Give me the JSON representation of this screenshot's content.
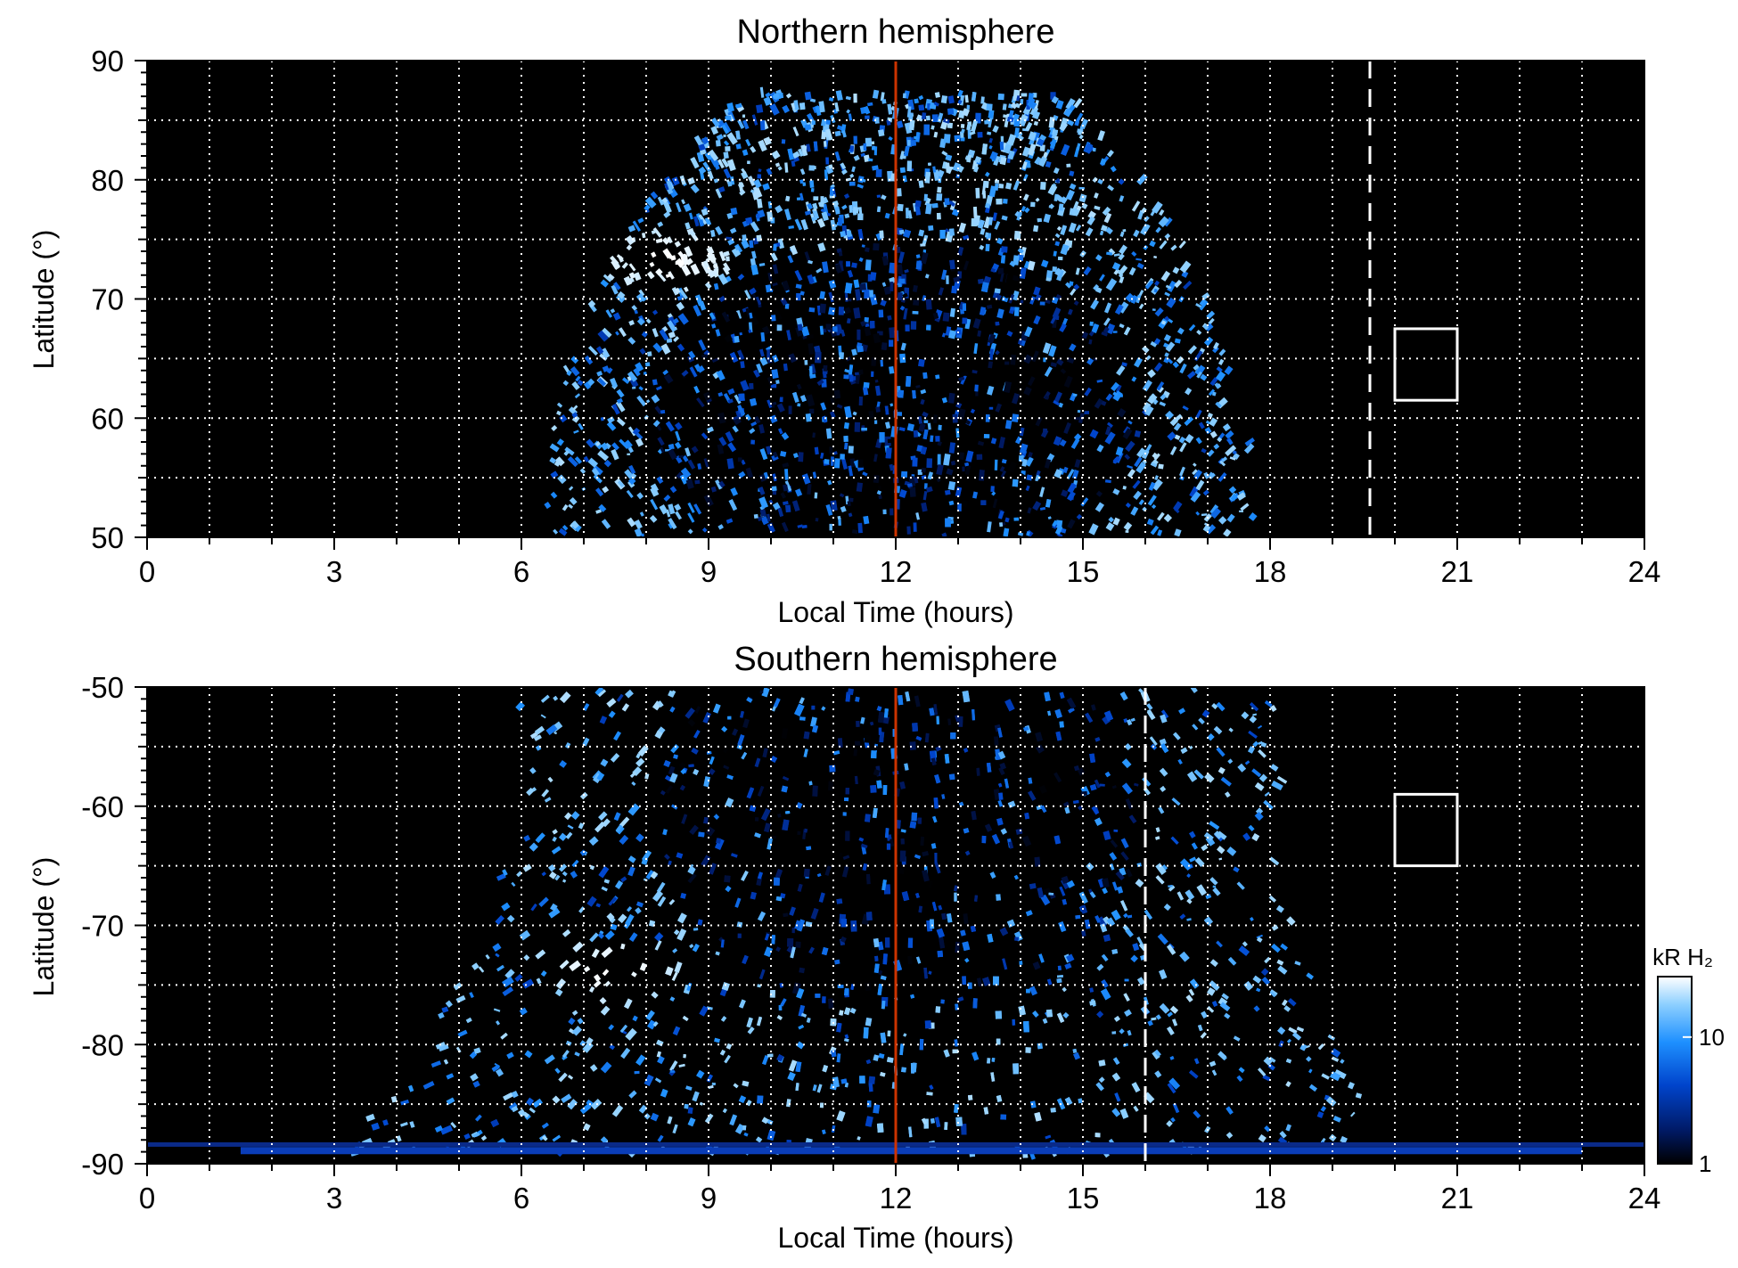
{
  "chart_data": [
    {
      "type": "heatmap",
      "title": "Northern hemisphere",
      "xlabel": "Local Time (hours)",
      "ylabel": "Latitude (°)",
      "xlim": [
        0,
        24
      ],
      "ylim": [
        50,
        90
      ],
      "x_ticks": [
        0,
        3,
        6,
        9,
        12,
        15,
        18,
        21,
        24
      ],
      "y_ticks": [
        50,
        60,
        70,
        80,
        90
      ],
      "grid": true,
      "noon_line_lt": 12,
      "noon_line_color": "#cc3300",
      "dashed_line_lt": 19.6,
      "box": {
        "lt": [
          20,
          21
        ],
        "lat": [
          61.5,
          67.5
        ]
      },
      "emission": {
        "lt_edge_at_50deg": [
          6.4,
          17.7
        ],
        "lt_edge_at_top": [
          9.6,
          14.8
        ],
        "lat_top": 87,
        "oval_center_lt": 12,
        "oval_center_lat": 60,
        "bright_spots": [
          {
            "lt": 8.4,
            "lat": 73,
            "level": 30
          },
          {
            "lt": 15.2,
            "lat": 77,
            "level": 14
          }
        ]
      }
    },
    {
      "type": "heatmap",
      "title": "Southern hemisphere",
      "xlabel": "Local Time (hours)",
      "ylabel": "Latitude (°)",
      "xlim": [
        0,
        24
      ],
      "ylim": [
        -90,
        -50
      ],
      "x_ticks": [
        0,
        3,
        6,
        9,
        12,
        15,
        18,
        21,
        24
      ],
      "y_ticks": [
        -90,
        -80,
        -70,
        -60,
        -50
      ],
      "grid": true,
      "noon_line_lt": 12,
      "noon_line_color": "#cc3300",
      "dashed_line_lt": 16,
      "box": {
        "lt": [
          20,
          21
        ],
        "lat": [
          -65,
          -59
        ]
      },
      "emission": {
        "lt_edge_at_minus50deg": [
          6.0,
          18.1
        ],
        "lt_edge_at_minus85deg": [
          3.0,
          20.0
        ],
        "lat_bottom": -89,
        "oval_center_lt": 12,
        "oval_center_lat": -60,
        "bright_spots": [
          {
            "lt": 7.5,
            "lat": -73.5,
            "level": 30
          }
        ]
      }
    }
  ],
  "colorbar": {
    "label": "kR H₂",
    "scale": "log",
    "range": [
      1,
      30
    ],
    "ticks": [
      "1",
      "10"
    ],
    "colors": [
      "#000000",
      "#001a66",
      "#0044cc",
      "#1e90ff",
      "#8ccfff",
      "#ffffff"
    ]
  }
}
